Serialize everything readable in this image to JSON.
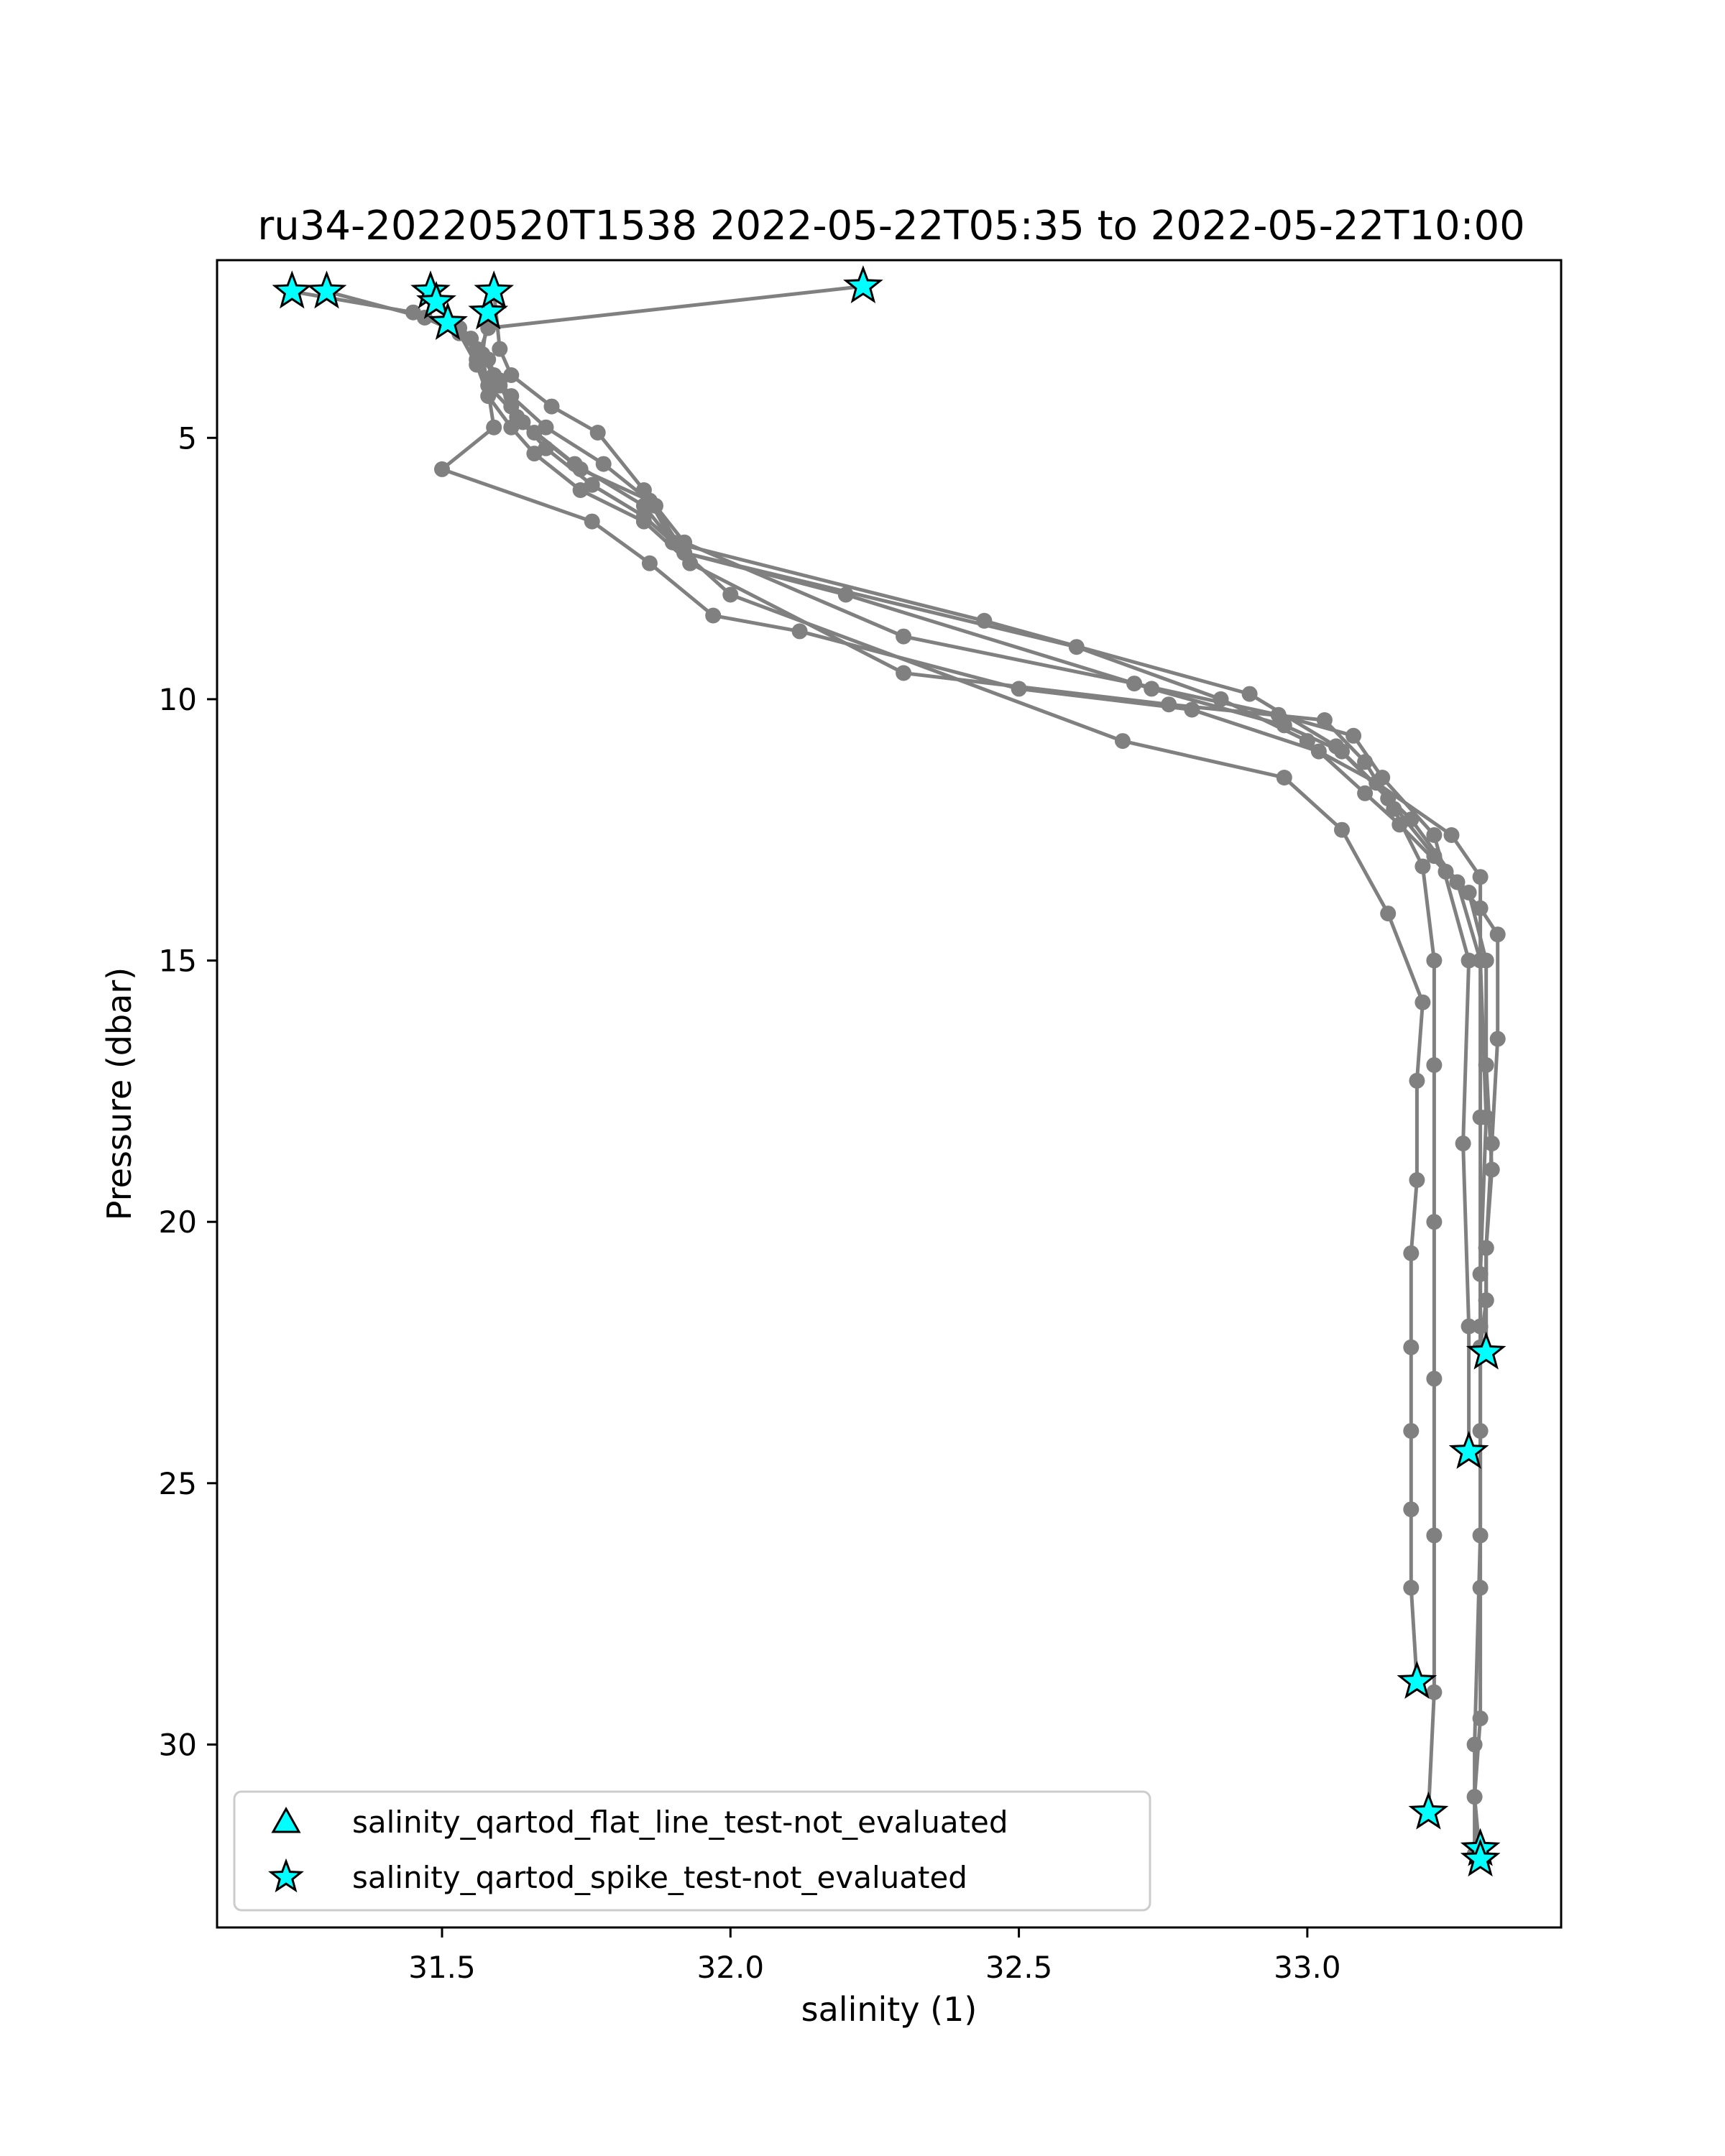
{
  "chart_data": {
    "type": "line",
    "title": "ru34-20220520T1538 2022-05-22T05:35 to 2022-05-22T10:00",
    "xlabel": "salinity (1)",
    "ylabel": "Pressure (dbar)",
    "xlim": [
      31.11,
      33.44
    ],
    "ylim": [
      33.5,
      1.6
    ],
    "y_inverted": true,
    "grid": false,
    "xticks": [
      31.5,
      32.0,
      32.5,
      33.0
    ],
    "xtick_labels": [
      "31.5",
      "32.0",
      "32.5",
      "33.0"
    ],
    "yticks": [
      5,
      10,
      15,
      20,
      25,
      30
    ],
    "ytick_labels": [
      "5",
      "10",
      "15",
      "20",
      "25",
      "30"
    ],
    "legend": {
      "placement": "lower-left",
      "entries": [
        {
          "label": "salinity_qartod_flat_line_test-not_evaluated",
          "marker": "triangle",
          "color": "#00ffff"
        },
        {
          "label": "salinity_qartod_spike_test-not_evaluated",
          "marker": "star",
          "color": "#00ffff"
        }
      ]
    },
    "line_color": "#808080",
    "flag_color": "#00ffff",
    "series": [
      {
        "x": [
          31.24,
          31.45,
          31.53,
          31.56,
          31.58,
          31.62,
          31.66,
          31.74,
          31.85,
          31.93,
          32.3,
          32.76,
          33.03,
          33.1,
          33.15,
          33.2,
          33.22,
          33.22,
          33.22,
          33.22,
          33.22,
          33.22,
          33.21
        ],
        "y": [
          2.2,
          2.6,
          3.0,
          3.6,
          4.2,
          4.8,
          5.3,
          6.0,
          6.6,
          7.4,
          9.5,
          10.1,
          10.4,
          11.2,
          12.1,
          13.2,
          15.0,
          17.0,
          20.0,
          23.0,
          26.0,
          29.0,
          31.3
        ]
      },
      {
        "x": [
          31.3,
          31.47,
          31.55,
          31.58,
          31.6,
          31.63,
          31.68,
          31.76,
          31.85,
          31.92,
          32.2,
          32.73,
          32.96,
          33.06,
          33.18,
          33.26,
          33.3,
          33.3,
          33.3,
          33.3,
          33.29,
          33.29
        ],
        "y": [
          2.2,
          2.7,
          3.1,
          3.5,
          4.0,
          4.6,
          5.2,
          5.9,
          6.5,
          7.2,
          8.0,
          9.8,
          10.5,
          11.0,
          12.3,
          13.5,
          15.0,
          18.0,
          22.0,
          26.0,
          30.0,
          32.1
        ]
      },
      {
        "x": [
          31.48,
          31.53,
          31.57,
          31.6,
          31.62,
          31.66,
          31.74,
          31.86,
          31.9,
          32.44,
          32.9,
          33.05,
          33.14,
          33.22,
          33.28,
          33.31,
          33.31,
          33.32,
          33.31,
          33.31,
          33.31
        ],
        "y": [
          2.3,
          2.9,
          3.4,
          3.9,
          4.4,
          4.9,
          5.6,
          6.2,
          7.0,
          8.5,
          9.9,
          10.9,
          11.9,
          13.0,
          13.7,
          15.0,
          17.0,
          19.0,
          20.5,
          21.5,
          22.5
        ]
      },
      {
        "x": [
          31.51,
          31.56,
          31.59,
          31.62,
          31.68,
          31.78,
          31.87,
          31.92,
          32.3,
          32.7,
          32.95,
          33.08,
          33.13,
          33.22,
          33.28,
          33.27,
          33.28,
          33.28
        ],
        "y": [
          2.8,
          3.3,
          3.8,
          4.2,
          4.8,
          5.5,
          6.3,
          7.0,
          8.8,
          9.7,
          10.3,
          10.7,
          11.5,
          12.6,
          15.0,
          18.5,
          22.0,
          24.4
        ]
      },
      {
        "x": [
          31.58,
          31.57,
          31.59,
          31.5,
          31.76,
          31.86,
          31.97,
          32.12,
          32.5,
          32.8,
          33.02,
          33.12,
          33.25,
          33.3,
          33.3,
          33.31,
          33.3,
          33.3,
          33.3,
          33.3,
          33.29,
          33.3
        ],
        "y": [
          2.6,
          3.4,
          4.8,
          5.6,
          6.6,
          7.4,
          8.4,
          8.7,
          9.8,
          10.2,
          11.0,
          11.6,
          12.6,
          13.4,
          15.0,
          18.0,
          21.0,
          24.0,
          27.0,
          29.5,
          31.0,
          32.2
        ]
      },
      {
        "x": [
          31.59,
          31.6,
          31.62,
          31.69,
          31.77,
          31.85,
          31.92,
          32.6,
          32.85,
          33.0,
          33.1,
          33.16,
          33.24,
          33.3,
          33.33,
          33.33,
          33.32,
          33.31,
          33.31,
          33.3
        ],
        "y": [
          2.2,
          3.3,
          3.8,
          4.4,
          4.9,
          6.0,
          7.2,
          9.0,
          10.0,
          10.8,
          11.8,
          12.4,
          13.3,
          14.0,
          14.5,
          16.5,
          18.5,
          20.5,
          21.5,
          22.4
        ]
      },
      {
        "x": [
          32.23,
          31.58,
          31.56,
          31.58,
          31.64,
          31.73,
          31.85,
          31.9,
          32.0,
          32.68,
          32.96,
          33.06,
          33.14,
          33.2,
          33.19,
          33.19,
          33.18,
          33.18,
          33.18,
          33.18,
          33.18,
          33.19
        ],
        "y": [
          2.1,
          2.9,
          3.5,
          4.0,
          4.7,
          5.5,
          6.3,
          7.0,
          8.0,
          10.8,
          11.5,
          12.5,
          14.1,
          15.8,
          17.3,
          19.2,
          20.6,
          22.4,
          24.0,
          25.5,
          27.0,
          28.8
        ]
      }
    ],
    "flagged_points": [
      {
        "test": "salinity_qartod_spike_test-not_evaluated",
        "points": [
          {
            "x": 31.24,
            "y": 2.2
          },
          {
            "x": 31.3,
            "y": 2.2
          },
          {
            "x": 31.48,
            "y": 2.2
          },
          {
            "x": 31.49,
            "y": 2.4
          },
          {
            "x": 31.51,
            "y": 2.8
          },
          {
            "x": 31.58,
            "y": 2.6
          },
          {
            "x": 31.59,
            "y": 2.2
          },
          {
            "x": 32.23,
            "y": 2.1
          },
          {
            "x": 33.31,
            "y": 22.5
          },
          {
            "x": 33.28,
            "y": 24.4
          },
          {
            "x": 33.19,
            "y": 28.8
          },
          {
            "x": 33.21,
            "y": 31.3
          },
          {
            "x": 33.3,
            "y": 32.0
          },
          {
            "x": 33.3,
            "y": 32.2
          }
        ]
      }
    ]
  }
}
